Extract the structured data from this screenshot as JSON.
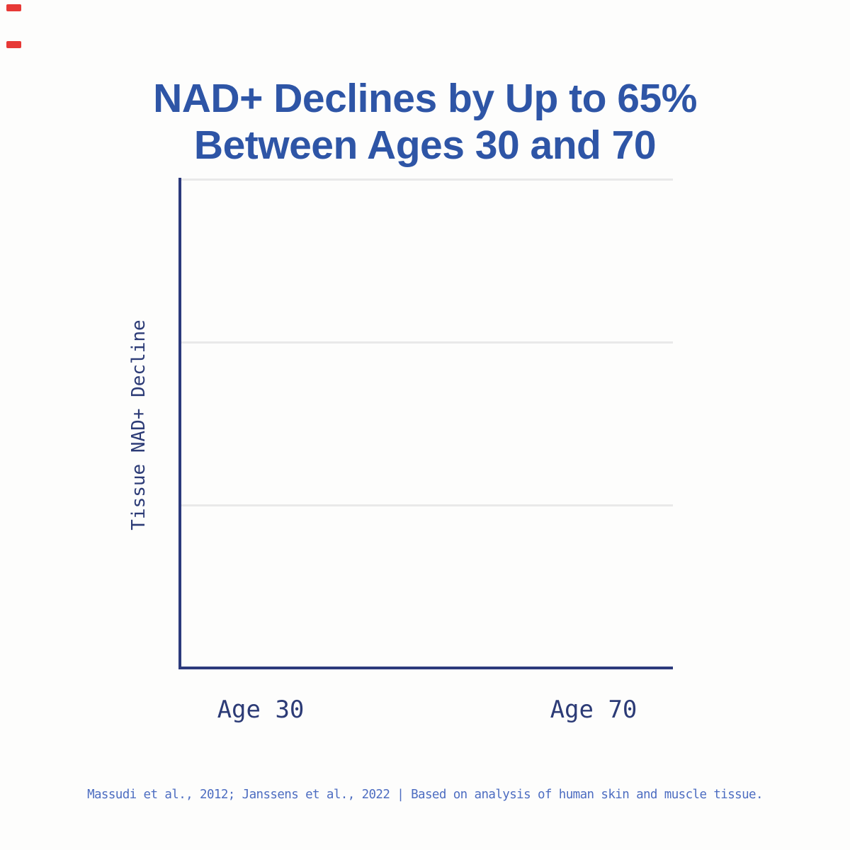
{
  "page": {
    "background_color": "#fdfdfc"
  },
  "title": {
    "line1": "NAD+ Declines by Up to 65%",
    "line2": "Between Ages 30 and 70",
    "color": "#2e55a6"
  },
  "chart": {
    "ylabel": "Tissue NAD+ Decline",
    "x_labels": [
      "Age 30",
      "Age 70"
    ],
    "axis_color": "#2c3a7c",
    "gridline_color": "#e9e9e9",
    "text_color": "#2c3b76"
  },
  "footer": {
    "text": "Massudi et al., 2012; Janssens et al., 2022 | Based on analysis of human skin and muscle tissue.",
    "color": "#4d6dc1"
  },
  "artifacts": {
    "red_mark_color": "#e42320"
  },
  "chart_data": {
    "type": "bar",
    "categories": [
      "Age 30",
      "Age 70"
    ],
    "values": [],
    "bars_rendered": false,
    "title": "NAD+ Declines by Up to 65% Between Ages 30 and 70",
    "xlabel": "",
    "ylabel": "Tissue NAD+ Decline",
    "gridlines": 3,
    "grid": "horizontal",
    "legend": "none"
  }
}
